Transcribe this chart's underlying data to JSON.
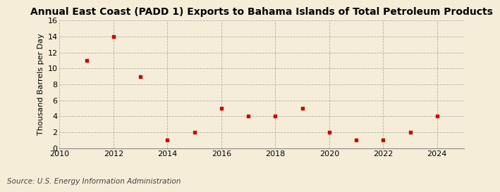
{
  "title": "Annual East Coast (PADD 1) Exports to Bahama Islands of Total Petroleum Products",
  "ylabel": "Thousand Barrels per Day",
  "source": "Source: U.S. Energy Information Administration",
  "background_color": "#f5edd8",
  "years": [
    2011,
    2012,
    2013,
    2014,
    2015,
    2016,
    2017,
    2018,
    2019,
    2020,
    2021,
    2022,
    2023,
    2024
  ],
  "values": [
    11,
    14,
    9,
    1,
    2,
    5,
    4,
    4,
    5,
    2,
    1,
    1,
    2,
    4
  ],
  "marker_color": "#cc0000",
  "xlim": [
    2010,
    2025
  ],
  "ylim": [
    0,
    16
  ],
  "yticks": [
    0,
    2,
    4,
    6,
    8,
    10,
    12,
    14,
    16
  ],
  "xticks": [
    2010,
    2012,
    2014,
    2016,
    2018,
    2020,
    2022,
    2024
  ],
  "title_fontsize": 10,
  "label_fontsize": 8,
  "tick_fontsize": 8,
  "source_fontsize": 7.5
}
